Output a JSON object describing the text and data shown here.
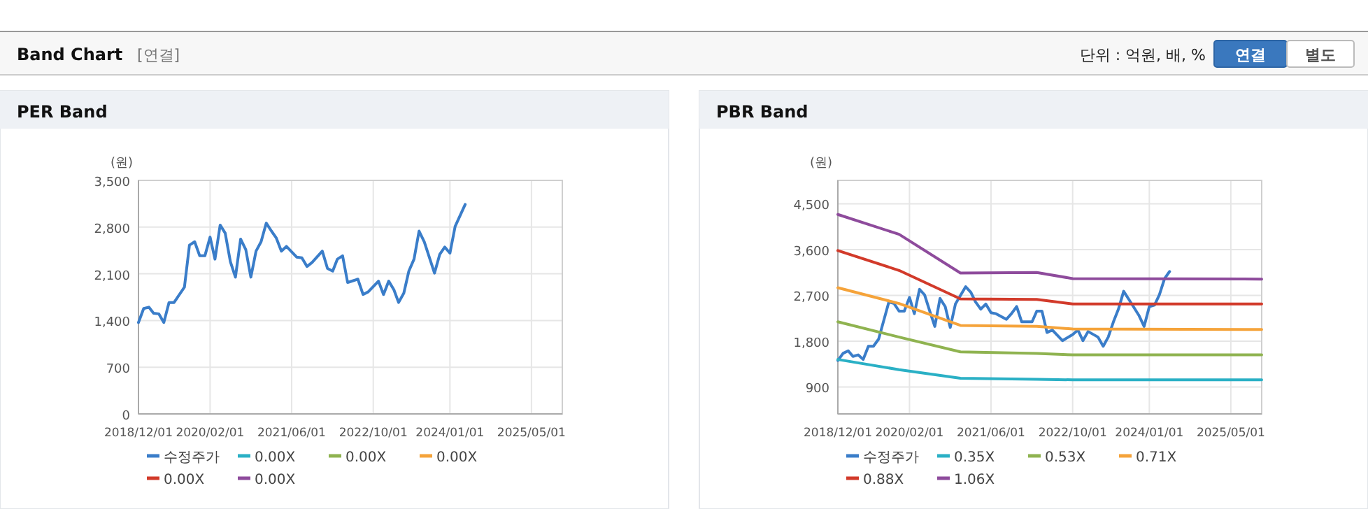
{
  "chart_data": [
    {
      "type": "other",
      "title": "Band Chart",
      "annotations": [
        "[연결]",
        "단위 : 억원, 배, %",
        "연결",
        "별도"
      ]
    },
    {
      "type": "line",
      "title": "PER Band",
      "ylabel": "(원)",
      "xlim": [
        "2018-12-01",
        "2025-11-01"
      ],
      "ylim": [
        0,
        3500
      ],
      "xticks": [
        {
          "value": "2018-12-01",
          "label": "2018/12/01"
        },
        {
          "value": "2020-02-01",
          "label": "2020/02/01"
        },
        {
          "value": "2021-06-01",
          "label": "2021/06/01"
        },
        {
          "value": "2022-10-01",
          "label": "2022/10/01"
        },
        {
          "value": "2024-01-01",
          "label": "2024/01/01"
        },
        {
          "value": "2025-05-01",
          "label": "2025/05/01"
        }
      ],
      "yticks": [
        0,
        700,
        {
          "value": 1400,
          "label": "1,400"
        },
        {
          "value": 2100,
          "label": "2,100"
        },
        {
          "value": 2800,
          "label": "2,800"
        },
        {
          "value": 3500,
          "label": "3,500"
        }
      ],
      "grid": true,
      "legend": "bottom",
      "marker": "none",
      "line_style": "solid",
      "series": [
        {
          "name": "수정주가",
          "color": "#3a7dc9",
          "x": [
            "2018-12",
            "2019-01",
            "2019-02",
            "2019-03",
            "2019-04",
            "2019-05",
            "2019-06",
            "2019-07",
            "2019-09",
            "2019-10",
            "2019-11",
            "2019-12",
            "2020-01",
            "2020-02",
            "2020-03",
            "2020-04",
            "2020-05",
            "2020-06",
            "2020-07",
            "2020-08",
            "2020-09",
            "2020-10",
            "2020-11",
            "2020-12",
            "2021-01",
            "2021-02",
            "2021-03",
            "2021-04",
            "2021-05",
            "2021-07",
            "2021-08",
            "2021-09",
            "2021-10",
            "2021-12",
            "2022-01",
            "2022-02",
            "2022-03",
            "2022-04",
            "2022-05",
            "2022-07",
            "2022-08",
            "2022-09",
            "2022-11",
            "2022-12",
            "2023-01",
            "2023-02",
            "2023-03",
            "2023-04",
            "2023-05",
            "2023-06",
            "2023-07",
            "2023-08",
            "2023-10",
            "2023-11",
            "2023-12",
            "2024-01",
            "2024-02",
            "2024-04"
          ],
          "values": [
            1370,
            1580,
            1600,
            1510,
            1500,
            1370,
            1670,
            1670,
            1900,
            2530,
            2580,
            2370,
            2370,
            2650,
            2320,
            2830,
            2710,
            2280,
            2050,
            2620,
            2460,
            2050,
            2440,
            2580,
            2860,
            2740,
            2640,
            2440,
            2510,
            2350,
            2340,
            2210,
            2270,
            2440,
            2180,
            2140,
            2320,
            2370,
            1970,
            2020,
            1790,
            1830,
            1990,
            1790,
            1990,
            1860,
            1670,
            1810,
            2140,
            2320,
            2740,
            2580,
            2110,
            2390,
            2500,
            2410,
            2810,
            3140
          ]
        },
        {
          "name": "0.00X",
          "color": "#2ab0c5"
        },
        {
          "name": "0.00X",
          "color": "#8fb350"
        },
        {
          "name": "0.00X",
          "color": "#f5a33a"
        },
        {
          "name": "0.00X",
          "color": "#d23a2a"
        },
        {
          "name": "0.00X",
          "color": "#8e4b9c"
        }
      ]
    },
    {
      "type": "line",
      "title": "PBR Band",
      "ylabel": "(원)",
      "xlim": [
        "2018-12-01",
        "2025-11-01"
      ],
      "ylim": [
        370,
        4960
      ],
      "xticks": [
        {
          "value": "2018-12-01",
          "label": "2018/12/01"
        },
        {
          "value": "2020-02-01",
          "label": "2020/02/01"
        },
        {
          "value": "2021-06-01",
          "label": "2021/06/01"
        },
        {
          "value": "2022-10-01",
          "label": "2022/10/01"
        },
        {
          "value": "2024-01-01",
          "label": "2024/01/01"
        },
        {
          "value": "2025-05-01",
          "label": "2025/05/01"
        }
      ],
      "yticks": [
        900,
        {
          "value": 1800,
          "label": "1,800"
        },
        {
          "value": 2700,
          "label": "2,700"
        },
        {
          "value": 3600,
          "label": "3,600"
        },
        {
          "value": 4500,
          "label": "4,500"
        }
      ],
      "grid": true,
      "legend": "bottom",
      "marker": "none",
      "line_style": "solid",
      "series": [
        {
          "name": "수정주가",
          "color": "#3a7dc9",
          "x": [
            "2018-12",
            "2019-01",
            "2019-02",
            "2019-03",
            "2019-04",
            "2019-05",
            "2019-06",
            "2019-07",
            "2019-08",
            "2019-10",
            "2019-11",
            "2019-12",
            "2020-01",
            "2020-02",
            "2020-03",
            "2020-04",
            "2020-05",
            "2020-06",
            "2020-07",
            "2020-08",
            "2020-09",
            "2020-10",
            "2020-11",
            "2021-01",
            "2021-02",
            "2021-03",
            "2021-04",
            "2021-05",
            "2021-06",
            "2021-07",
            "2021-09",
            "2021-10",
            "2021-11",
            "2021-12",
            "2022-02",
            "2022-03",
            "2022-04",
            "2022-05",
            "2022-06",
            "2022-08",
            "2022-10",
            "2022-11",
            "2022-12",
            "2023-01",
            "2023-03",
            "2023-04",
            "2023-05",
            "2023-06",
            "2023-07",
            "2023-08",
            "2023-09",
            "2023-11",
            "2023-12",
            "2024-01",
            "2024-02",
            "2024-03",
            "2024-04",
            "2024-05"
          ],
          "values": [
            1420,
            1560,
            1610,
            1500,
            1530,
            1440,
            1700,
            1700,
            1840,
            2570,
            2540,
            2390,
            2390,
            2660,
            2340,
            2820,
            2710,
            2390,
            2090,
            2640,
            2480,
            2070,
            2530,
            2870,
            2760,
            2570,
            2430,
            2530,
            2360,
            2340,
            2230,
            2340,
            2480,
            2180,
            2180,
            2390,
            2390,
            1970,
            2020,
            1810,
            1930,
            2020,
            1810,
            1990,
            1880,
            1700,
            1880,
            2180,
            2430,
            2780,
            2620,
            2300,
            2090,
            2480,
            2510,
            2710,
            3030,
            3170
          ]
        },
        {
          "name": "0.35X",
          "color": "#2ab0c5",
          "x": [
            "2018-12",
            "2019-12",
            "2020-12",
            "2022-03",
            "2022-10",
            "2025-11"
          ],
          "values": [
            1440,
            1240,
            1070,
            1050,
            1040,
            1040
          ]
        },
        {
          "name": "0.53X",
          "color": "#8fb350",
          "x": [
            "2018-12",
            "2019-12",
            "2020-12",
            "2022-03",
            "2022-10",
            "2025-11"
          ],
          "values": [
            2180,
            1880,
            1590,
            1560,
            1530,
            1530
          ]
        },
        {
          "name": "0.71X",
          "color": "#f5a33a",
          "x": [
            "2018-12",
            "2019-12",
            "2020-12",
            "2022-03",
            "2022-10",
            "2025-11"
          ],
          "values": [
            2850,
            2540,
            2110,
            2090,
            2040,
            2030
          ]
        },
        {
          "name": "0.88X",
          "color": "#d23a2a",
          "x": [
            "2018-12",
            "2019-12",
            "2020-12",
            "2022-03",
            "2022-10",
            "2025-11"
          ],
          "values": [
            3580,
            3190,
            2630,
            2620,
            2530,
            2530
          ]
        },
        {
          "name": "1.06X",
          "color": "#8e4b9c",
          "x": [
            "2018-12",
            "2019-12",
            "2020-12",
            "2022-03",
            "2022-10",
            "2025-11"
          ],
          "values": [
            4290,
            3900,
            3140,
            3150,
            3030,
            3020
          ]
        }
      ]
    }
  ]
}
